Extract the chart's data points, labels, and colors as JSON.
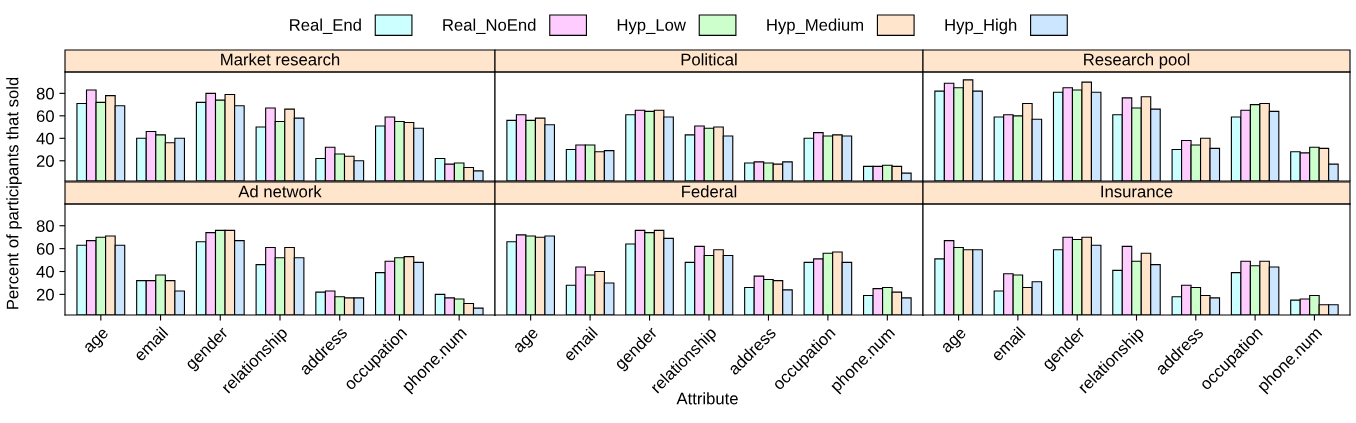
{
  "chart_data": [
    {
      "type": "bar",
      "title": "Market research",
      "ylabel": "Percent of participants that sold",
      "categories": [
        "age",
        "email",
        "gender",
        "relationship",
        "address",
        "occupation",
        "phone.num"
      ],
      "ylim": [
        2,
        99
      ],
      "yticks": [
        20,
        40,
        60,
        80
      ],
      "tick_labels": "y",
      "legend": "top",
      "grid": false,
      "series": [
        {
          "name": "Real_End",
          "color": "#ccffff",
          "values": [
            71,
            40,
            72,
            50,
            22,
            51,
            22
          ]
        },
        {
          "name": "Real_NoEnd",
          "color": "#ffccff",
          "values": [
            83,
            46,
            80,
            67,
            32,
            59,
            17
          ]
        },
        {
          "name": "Hyp_Low",
          "color": "#ccffcc",
          "values": [
            72,
            43,
            74,
            55,
            26,
            55,
            18
          ]
        },
        {
          "name": "Hyp_Medium",
          "color": "#ffe5cc",
          "values": [
            78,
            36,
            79,
            66,
            24,
            54,
            14
          ]
        },
        {
          "name": "Hyp_High",
          "color": "#cce6ff",
          "values": [
            69,
            40,
            69,
            58,
            20,
            49,
            11
          ]
        }
      ]
    },
    {
      "type": "bar",
      "title": "Political",
      "categories": [
        "age",
        "email",
        "gender",
        "relationship",
        "address",
        "occupation",
        "phone.num"
      ],
      "ylim": [
        2,
        99
      ],
      "yticks": [
        20,
        40,
        60,
        80
      ],
      "tick_labels": false,
      "grid": false,
      "series": [
        {
          "name": "Real_End",
          "color": "#ccffff",
          "values": [
            56,
            30,
            61,
            43,
            18,
            40,
            15
          ]
        },
        {
          "name": "Real_NoEnd",
          "color": "#ffccff",
          "values": [
            61,
            34,
            65,
            51,
            19,
            45,
            15
          ]
        },
        {
          "name": "Hyp_Low",
          "color": "#ccffcc",
          "values": [
            56,
            34,
            64,
            49,
            18,
            42,
            16
          ]
        },
        {
          "name": "Hyp_Medium",
          "color": "#ffe5cc",
          "values": [
            58,
            28,
            65,
            50,
            17,
            43,
            15
          ]
        },
        {
          "name": "Hyp_High",
          "color": "#cce6ff",
          "values": [
            52,
            29,
            59,
            42,
            19,
            42,
            9
          ]
        }
      ]
    },
    {
      "type": "bar",
      "title": "Research pool",
      "categories": [
        "age",
        "email",
        "gender",
        "relationship",
        "address",
        "occupation",
        "phone.num"
      ],
      "ylim": [
        2,
        99
      ],
      "yticks": [
        20,
        40,
        60,
        80
      ],
      "tick_labels": false,
      "grid": false,
      "series": [
        {
          "name": "Real_End",
          "color": "#ccffff",
          "values": [
            82,
            59,
            81,
            61,
            30,
            59,
            28
          ]
        },
        {
          "name": "Real_NoEnd",
          "color": "#ffccff",
          "values": [
            89,
            61,
            85,
            76,
            38,
            65,
            27
          ]
        },
        {
          "name": "Hyp_Low",
          "color": "#ccffcc",
          "values": [
            85,
            60,
            83,
            67,
            34,
            70,
            32
          ]
        },
        {
          "name": "Hyp_Medium",
          "color": "#ffe5cc",
          "values": [
            92,
            71,
            90,
            77,
            40,
            71,
            31
          ]
        },
        {
          "name": "Hyp_High",
          "color": "#cce6ff",
          "values": [
            82,
            57,
            81,
            66,
            31,
            64,
            17
          ]
        }
      ]
    },
    {
      "type": "bar",
      "title": "Ad network",
      "categories": [
        "age",
        "email",
        "gender",
        "relationship",
        "address",
        "occupation",
        "phone.num"
      ],
      "ylim": [
        2,
        99
      ],
      "yticks": [
        20,
        40,
        60,
        80
      ],
      "grid": false,
      "series": [
        {
          "name": "Real_End",
          "color": "#ccffff",
          "values": [
            63,
            32,
            66,
            46,
            22,
            39,
            20
          ]
        },
        {
          "name": "Real_NoEnd",
          "color": "#ffccff",
          "values": [
            67,
            32,
            74,
            61,
            23,
            49,
            17
          ]
        },
        {
          "name": "Hyp_Low",
          "color": "#ccffcc",
          "values": [
            70,
            37,
            76,
            52,
            18,
            52,
            16
          ]
        },
        {
          "name": "Hyp_Medium",
          "color": "#ffe5cc",
          "values": [
            71,
            32,
            76,
            61,
            17,
            53,
            12
          ]
        },
        {
          "name": "Hyp_High",
          "color": "#cce6ff",
          "values": [
            63,
            23,
            67,
            52,
            17,
            48,
            8
          ]
        }
      ]
    },
    {
      "type": "bar",
      "title": "Federal",
      "xlabel": "Attribute",
      "categories": [
        "age",
        "email",
        "gender",
        "relationship",
        "address",
        "occupation",
        "phone.num"
      ],
      "ylim": [
        2,
        99
      ],
      "yticks": [
        20,
        40,
        60,
        80
      ],
      "tick_labels": "x",
      "grid": false,
      "series": [
        {
          "name": "Real_End",
          "color": "#ccffff",
          "values": [
            66,
            28,
            64,
            48,
            26,
            48,
            19
          ]
        },
        {
          "name": "Real_NoEnd",
          "color": "#ffccff",
          "values": [
            72,
            44,
            76,
            62,
            36,
            51,
            25
          ]
        },
        {
          "name": "Hyp_Low",
          "color": "#ccffcc",
          "values": [
            71,
            37,
            74,
            54,
            33,
            56,
            26
          ]
        },
        {
          "name": "Hyp_Medium",
          "color": "#ffe5cc",
          "values": [
            70,
            40,
            76,
            59,
            32,
            57,
            22
          ]
        },
        {
          "name": "Hyp_High",
          "color": "#cce6ff",
          "values": [
            71,
            30,
            69,
            54,
            24,
            48,
            17
          ]
        }
      ]
    },
    {
      "type": "bar",
      "title": "Insurance",
      "categories": [
        "age",
        "email",
        "gender",
        "relationship",
        "address",
        "occupation",
        "phone.num"
      ],
      "ylim": [
        2,
        99
      ],
      "yticks": [
        20,
        40,
        60,
        80
      ],
      "tick_labels": "x",
      "grid": false,
      "series": [
        {
          "name": "Real_End",
          "color": "#ccffff",
          "values": [
            51,
            23,
            59,
            41,
            18,
            39,
            15
          ]
        },
        {
          "name": "Real_NoEnd",
          "color": "#ffccff",
          "values": [
            67,
            38,
            70,
            62,
            28,
            49,
            16
          ]
        },
        {
          "name": "Hyp_Low",
          "color": "#ccffcc",
          "values": [
            61,
            37,
            68,
            49,
            26,
            45,
            19
          ]
        },
        {
          "name": "Hyp_Medium",
          "color": "#ffe5cc",
          "values": [
            59,
            26,
            70,
            56,
            19,
            49,
            11
          ]
        },
        {
          "name": "Hyp_High",
          "color": "#cce6ff",
          "values": [
            59,
            31,
            63,
            46,
            17,
            44,
            11
          ]
        }
      ]
    }
  ]
}
